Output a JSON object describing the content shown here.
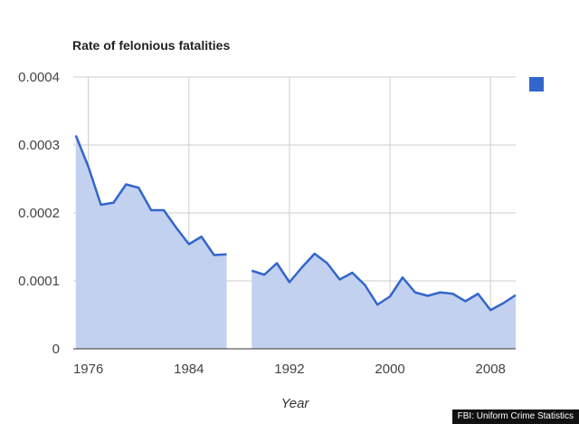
{
  "chart_data": {
    "type": "area",
    "title": "Rate of felonious fatalities",
    "xlabel": "Year",
    "ylabel": "",
    "xlim": [
      1974.8,
      2010
    ],
    "ylim": [
      0,
      0.0004
    ],
    "x_ticks": [
      1976,
      1984,
      1992,
      2000,
      2008
    ],
    "y_ticks": [
      {
        "value": 0,
        "label": "0"
      },
      {
        "value": 0.0001,
        "label": "0.0001"
      },
      {
        "value": 0.0002,
        "label": "0.0002"
      },
      {
        "value": 0.0003,
        "label": "0.0003"
      },
      {
        "value": 0.0004,
        "label": "0.0004"
      }
    ],
    "grid": true,
    "legend": "top-right",
    "colors": {
      "line": "#3366cc",
      "fill": "#c3d1f0",
      "grid": "#cccccc"
    },
    "series": [
      {
        "segments": [
          [
            [
              1975,
              0.000314
            ],
            [
              1976,
              0.000268
            ],
            [
              1977,
              0.000212
            ],
            [
              1978,
              0.000215
            ],
            [
              1979,
              0.000242
            ],
            [
              1980,
              0.000237
            ],
            [
              1981,
              0.000204
            ],
            [
              1982,
              0.000204
            ],
            [
              1983,
              0.000178
            ],
            [
              1984,
              0.000154
            ],
            [
              1985,
              0.000165
            ],
            [
              1986,
              0.000138
            ],
            [
              1987,
              0.000139
            ]
          ],
          [
            [
              1989,
              0.000115
            ],
            [
              1990,
              0.000109
            ],
            [
              1991,
              0.000126
            ],
            [
              1992,
              9.8e-05
            ],
            [
              1993,
              0.00012
            ],
            [
              1994,
              0.00014
            ],
            [
              1995,
              0.000126
            ],
            [
              1996,
              0.000102
            ],
            [
              1997,
              0.000112
            ],
            [
              1998,
              9.4e-05
            ],
            [
              1999,
              6.5e-05
            ],
            [
              2000,
              7.7e-05
            ],
            [
              2001,
              0.000105
            ],
            [
              2002,
              8.3e-05
            ],
            [
              2003,
              7.8e-05
            ],
            [
              2004,
              8.3e-05
            ],
            [
              2005,
              8.1e-05
            ],
            [
              2006,
              7e-05
            ],
            [
              2007,
              8.1e-05
            ],
            [
              2008,
              5.7e-05
            ],
            [
              2009,
              6.7e-05
            ],
            [
              2010,
              7.9e-05
            ]
          ]
        ]
      }
    ]
  },
  "source_note": "FBI: Uniform Crime Statistics"
}
